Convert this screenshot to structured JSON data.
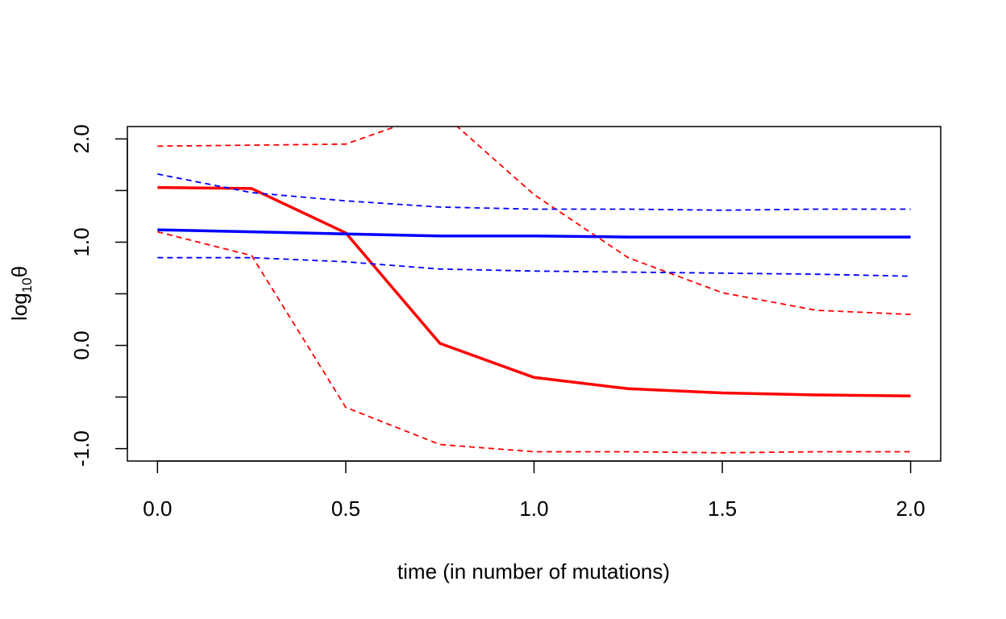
{
  "chart_data": {
    "type": "line",
    "title": "",
    "xlabel": "time (in number of mutations)",
    "ylabel": {
      "base": "log",
      "subscript": "10",
      "symbol": "θ"
    },
    "xlim": [
      -0.08,
      2.08
    ],
    "ylim": [
      -1.12,
      2.12
    ],
    "x_ticks": [
      0.0,
      0.5,
      1.0,
      1.5,
      2.0
    ],
    "x_tick_labels": [
      "0.0",
      "0.5",
      "1.0",
      "1.5",
      "2.0"
    ],
    "y_ticks": [
      -1.0,
      -0.5,
      0.0,
      0.5,
      1.0,
      1.5,
      2.0
    ],
    "y_tick_labels": [
      "-1.0",
      "",
      "0.0",
      "",
      "1.0",
      "",
      "2.0"
    ],
    "grid": false,
    "legend": "none",
    "x": [
      0.0,
      0.25,
      0.5,
      0.75,
      1.0,
      1.25,
      1.5,
      1.75,
      2.0
    ],
    "series": [
      {
        "color": "#ff0000",
        "style": "solid",
        "values": [
          1.53,
          1.52,
          1.09,
          0.02,
          -0.31,
          -0.42,
          -0.46,
          -0.48,
          -0.49
        ]
      },
      {
        "color": "#ff0000",
        "style": "dashed",
        "values": [
          1.93,
          1.94,
          1.95,
          2.27,
          1.46,
          0.85,
          0.51,
          0.34,
          0.3
        ]
      },
      {
        "color": "#ff0000",
        "style": "dashed",
        "values": [
          1.1,
          0.87,
          -0.6,
          -0.96,
          -1.03,
          -1.03,
          -1.04,
          -1.03,
          -1.03
        ]
      },
      {
        "color": "#0000ff",
        "style": "solid",
        "values": [
          1.12,
          1.1,
          1.08,
          1.06,
          1.06,
          1.05,
          1.05,
          1.05,
          1.05
        ]
      },
      {
        "color": "#0000ff",
        "style": "dashed",
        "values": [
          1.66,
          1.48,
          1.4,
          1.34,
          1.32,
          1.32,
          1.31,
          1.32,
          1.32
        ]
      },
      {
        "color": "#0000ff",
        "style": "dashed",
        "values": [
          0.85,
          0.85,
          0.81,
          0.74,
          0.72,
          0.71,
          0.7,
          0.69,
          0.67
        ]
      }
    ]
  }
}
